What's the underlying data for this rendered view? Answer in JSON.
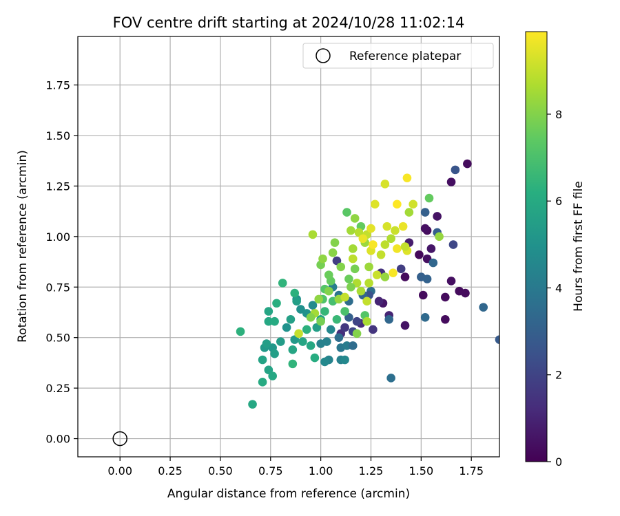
{
  "chart_data": {
    "type": "scatter",
    "title": "FOV centre drift starting at 2024/10/28 11:02:14",
    "xlabel": "Angular distance from reference (arcmin)",
    "ylabel": "Rotation from reference (arcmin)",
    "xlim": [
      -0.21,
      1.89
    ],
    "ylim": [
      -0.09,
      1.99
    ],
    "xticks": [
      "0.00",
      "0.25",
      "0.50",
      "0.75",
      "1.00",
      "1.25",
      "1.50",
      "1.75"
    ],
    "yticks": [
      "0.00",
      "0.25",
      "0.50",
      "0.75",
      "1.00",
      "1.25",
      "1.50",
      "1.75"
    ],
    "grid": true,
    "legend": {
      "placement": "top-right",
      "entries": [
        "Reference platepar"
      ]
    },
    "reference_point": {
      "x": 0.0,
      "y": 0.0
    },
    "colorbar": {
      "label": "Hours from first FF file",
      "range": [
        0,
        9.9
      ],
      "ticks": [
        "0",
        "2",
        "4",
        "6",
        "8"
      ],
      "colormap": "viridis"
    },
    "series": [
      {
        "columns": [
          "x",
          "y",
          "hours"
        ],
        "points": [
          [
            1.73,
            1.36,
            0.3
          ],
          [
            1.65,
            1.27,
            0.4
          ],
          [
            1.58,
            1.1,
            0.5
          ],
          [
            1.53,
            1.03,
            0.3
          ],
          [
            1.52,
            1.04,
            0.4
          ],
          [
            1.44,
            0.97,
            0.8
          ],
          [
            1.55,
            0.94,
            0.6
          ],
          [
            1.49,
            0.91,
            0.2
          ],
          [
            1.53,
            0.89,
            0.4
          ],
          [
            1.65,
            0.78,
            0.4
          ],
          [
            1.62,
            0.7,
            0.3
          ],
          [
            1.69,
            0.73,
            0.3
          ],
          [
            1.72,
            0.72,
            0.3
          ],
          [
            1.51,
            0.71,
            0.3
          ],
          [
            1.42,
            0.8,
            0.3
          ],
          [
            1.62,
            0.59,
            0.3
          ],
          [
            1.42,
            0.56,
            0.5
          ],
          [
            1.31,
            0.67,
            0.6
          ],
          [
            1.29,
            0.68,
            1.0
          ],
          [
            1.34,
            0.61,
            1.0
          ],
          [
            1.26,
            0.54,
            1.5
          ],
          [
            1.2,
            0.57,
            1.2
          ],
          [
            1.18,
            0.58,
            2.0
          ],
          [
            1.16,
            0.53,
            2.1
          ],
          [
            1.1,
            0.52,
            1.3
          ],
          [
            1.12,
            0.55,
            1.6
          ],
          [
            1.08,
            0.88,
            1.8
          ],
          [
            1.3,
            0.82,
            1.4
          ],
          [
            1.4,
            0.84,
            1.8
          ],
          [
            1.67,
            1.33,
            2.6
          ],
          [
            1.66,
            0.96,
            2.1
          ],
          [
            1.52,
            1.12,
            3.0
          ],
          [
            1.58,
            1.02,
            2.9
          ],
          [
            1.56,
            0.87,
            3.3
          ],
          [
            1.5,
            0.8,
            3.0
          ],
          [
            1.53,
            0.79,
            3.1
          ],
          [
            1.52,
            0.6,
            3.4
          ],
          [
            1.81,
            0.65,
            3.3
          ],
          [
            1.35,
            0.3,
            3.6
          ],
          [
            1.89,
            0.49,
            2.8
          ],
          [
            1.34,
            0.59,
            3.3
          ],
          [
            1.25,
            0.73,
            3.5
          ],
          [
            1.24,
            0.71,
            2.5
          ],
          [
            1.21,
            0.71,
            3.2
          ],
          [
            1.14,
            0.68,
            3.5
          ],
          [
            1.09,
            0.71,
            3.8
          ],
          [
            1.06,
            0.75,
            4.2
          ],
          [
            1.14,
            0.6,
            3.0
          ],
          [
            1.09,
            0.5,
            3.5
          ],
          [
            1.1,
            0.45,
            3.9
          ],
          [
            1.13,
            0.46,
            4.1
          ],
          [
            1.16,
            0.46,
            3.5
          ],
          [
            1.1,
            0.39,
            4.3
          ],
          [
            1.12,
            0.39,
            4.6
          ],
          [
            1.04,
            0.39,
            4.4
          ],
          [
            1.02,
            0.38,
            4.6
          ],
          [
            1.0,
            0.47,
            4.3
          ],
          [
            1.03,
            0.48,
            4.3
          ],
          [
            1.05,
            0.54,
            4.5
          ],
          [
            0.96,
            0.66,
            4.7
          ],
          [
            0.88,
            0.69,
            4.8
          ],
          [
            0.9,
            0.64,
            4.9
          ],
          [
            0.93,
            0.62,
            5.0
          ],
          [
            0.83,
            0.55,
            5.0
          ],
          [
            0.87,
            0.49,
            5.3
          ],
          [
            0.8,
            0.48,
            5.4
          ],
          [
            0.76,
            0.45,
            5.2
          ],
          [
            0.72,
            0.45,
            5.3
          ],
          [
            0.73,
            0.47,
            5.5
          ],
          [
            0.77,
            0.42,
            5.5
          ],
          [
            0.74,
            0.34,
            5.7
          ],
          [
            0.76,
            0.31,
            5.9
          ],
          [
            0.71,
            0.28,
            6.0
          ],
          [
            0.71,
            0.39,
            5.7
          ],
          [
            0.74,
            0.58,
            5.9
          ],
          [
            0.77,
            0.58,
            6.0
          ],
          [
            0.74,
            0.63,
            5.8
          ],
          [
            0.78,
            0.67,
            6.2
          ],
          [
            0.81,
            0.77,
            6.4
          ],
          [
            0.87,
            0.72,
            6.3
          ],
          [
            0.88,
            0.68,
            5.5
          ],
          [
            0.85,
            0.59,
            5.6
          ],
          [
            0.86,
            0.44,
            5.8
          ],
          [
            0.86,
            0.37,
            6.4
          ],
          [
            0.91,
            0.48,
            5.8
          ],
          [
            0.93,
            0.54,
            6.3
          ],
          [
            0.95,
            0.46,
            5.9
          ],
          [
            0.97,
            0.4,
            6.1
          ],
          [
            0.98,
            0.55,
            5.5
          ],
          [
            1.0,
            0.59,
            5.7
          ],
          [
            0.66,
            0.17,
            5.9
          ],
          [
            0.6,
            0.53,
            6.3
          ],
          [
            1.02,
            0.63,
            6.5
          ],
          [
            1.06,
            0.68,
            6.9
          ],
          [
            1.08,
            0.59,
            6.6
          ],
          [
            1.12,
            0.63,
            7.0
          ],
          [
            1.01,
            0.69,
            7.1
          ],
          [
            1.02,
            0.74,
            7.2
          ],
          [
            1.05,
            0.78,
            7.5
          ],
          [
            1.1,
            0.85,
            8.0
          ],
          [
            1.04,
            0.81,
            7.6
          ],
          [
            1.0,
            0.86,
            7.8
          ],
          [
            1.01,
            0.89,
            8.2
          ],
          [
            1.06,
            0.92,
            8.1
          ],
          [
            1.07,
            0.97,
            8.0
          ],
          [
            0.96,
            1.01,
            8.6
          ],
          [
            1.13,
            1.12,
            7.3
          ],
          [
            1.17,
            1.09,
            8.2
          ],
          [
            1.2,
            1.05,
            7.5
          ],
          [
            1.15,
            1.03,
            8.5
          ],
          [
            1.19,
            1.02,
            8.8
          ],
          [
            1.23,
            1.01,
            9.0
          ],
          [
            1.22,
            0.97,
            8.4
          ],
          [
            1.16,
            0.94,
            8.5
          ],
          [
            1.25,
            0.93,
            9.4
          ],
          [
            1.3,
            0.91,
            9.0
          ],
          [
            1.32,
            0.96,
            8.9
          ],
          [
            1.35,
            0.99,
            8.7
          ],
          [
            1.37,
            1.03,
            9.1
          ],
          [
            1.33,
            1.05,
            9.3
          ],
          [
            1.41,
            1.05,
            9.6
          ],
          [
            1.44,
            1.12,
            8.5
          ],
          [
            1.46,
            1.16,
            9.2
          ],
          [
            1.38,
            1.16,
            9.9
          ],
          [
            1.27,
            1.16,
            9.4
          ],
          [
            1.54,
            1.19,
            7.5
          ],
          [
            1.32,
            1.26,
            9.3
          ],
          [
            1.43,
            1.29,
            9.8
          ],
          [
            1.59,
            1.0,
            8.3
          ],
          [
            1.43,
            0.93,
            9.4
          ],
          [
            1.38,
            0.94,
            9.7
          ],
          [
            1.28,
            0.81,
            9.1
          ],
          [
            1.24,
            0.85,
            8.4
          ],
          [
            1.17,
            0.84,
            7.8
          ],
          [
            1.14,
            0.79,
            7.6
          ],
          [
            1.18,
            0.77,
            8.7
          ],
          [
            1.2,
            0.73,
            8.6
          ],
          [
            1.24,
            0.77,
            8.8
          ],
          [
            1.32,
            0.8,
            8.3
          ],
          [
            1.36,
            0.82,
            9.8
          ],
          [
            1.23,
            0.68,
            9.0
          ],
          [
            1.22,
            0.61,
            7.2
          ],
          [
            1.23,
            0.58,
            8.6
          ],
          [
            1.18,
            0.52,
            8.0
          ],
          [
            1.09,
            0.69,
            8.3
          ],
          [
            1.12,
            0.7,
            9.0
          ],
          [
            1.04,
            0.73,
            8.0
          ],
          [
            0.99,
            0.69,
            8.2
          ],
          [
            0.97,
            0.62,
            8.5
          ],
          [
            0.95,
            0.6,
            8.0
          ],
          [
            1.0,
            0.58,
            7.8
          ],
          [
            0.89,
            0.52,
            9.0
          ],
          [
            1.15,
            0.75,
            7.9
          ],
          [
            1.25,
            1.04,
            9.5
          ],
          [
            1.21,
            0.99,
            9.6
          ],
          [
            1.16,
            0.89,
            8.9
          ],
          [
            1.26,
            0.96,
            9.8
          ],
          [
            1.42,
            0.95,
            9.0
          ]
        ]
      }
    ]
  }
}
